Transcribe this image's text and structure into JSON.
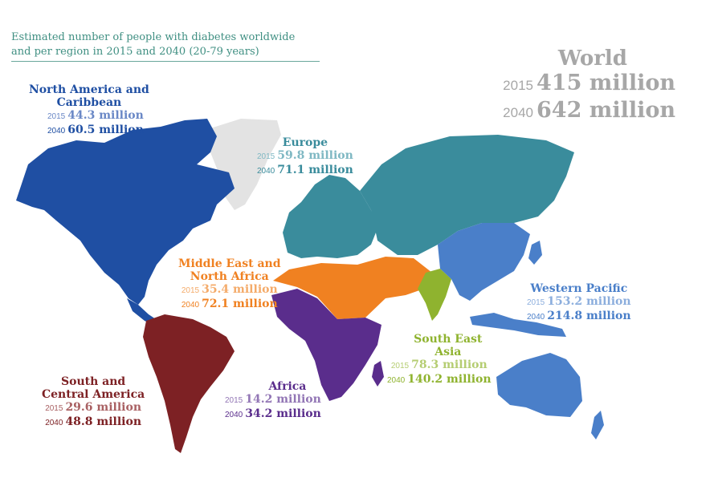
{
  "title_lines": [
    "Estimated number of people with diabetes worldwide",
    "and per region in 2015 and 2040 (20-79 years)"
  ],
  "world": {
    "name": "World",
    "y2015_label": "2015",
    "v2015": "415 million",
    "y2040_label": "2040",
    "v2040": "642 million",
    "color": "#a7a7a7"
  },
  "regions": {
    "north_america": {
      "name_lines": [
        "North America and",
        "Caribbean"
      ],
      "y2015_label": "2015",
      "v2015": "44.3 million",
      "y2040_label": "2040",
      "v2040": "60.5 million",
      "color": "#1f4fa3",
      "light": "#6a88c6"
    },
    "europe": {
      "name_lines": [
        "Europe"
      ],
      "y2015_label": "2015",
      "v2015": "59.8 million",
      "y2040_label": "2040",
      "v2040": "71.1 million",
      "color": "#3a8c9c",
      "light": "#7fb8c3"
    },
    "mena": {
      "name_lines": [
        "Middle East and",
        "North Africa"
      ],
      "y2015_label": "2015",
      "v2015": "35.4 million",
      "y2040_label": "2040",
      "v2040": "72.1 million",
      "color": "#f08121",
      "light": "#f4ab6a"
    },
    "western_pacific": {
      "name_lines": [
        "Western Pacific"
      ],
      "y2015_label": "2015",
      "v2015": "153.2 million",
      "y2040_label": "2040",
      "v2040": "214.8 million",
      "color": "#4a7fc9",
      "light": "#8caedd"
    },
    "south_east_asia": {
      "name_lines": [
        "South East",
        "Asia"
      ],
      "y2015_label": "2015",
      "v2015": "78.3 million",
      "y2040_label": "2040",
      "v2040": "140.2 million",
      "color": "#8fb32f",
      "light": "#b5cd72"
    },
    "africa": {
      "name_lines": [
        "Africa"
      ],
      "y2015_label": "2015",
      "v2015": "14.2 million",
      "y2040_label": "2040",
      "v2040": "34.2 million",
      "color": "#5a2d8c",
      "light": "#9276b5"
    },
    "south_central_america": {
      "name_lines": [
        "South and",
        "Central America"
      ],
      "y2015_label": "2015",
      "v2015": "29.6 million",
      "y2040_label": "2040",
      "v2040": "48.8 million",
      "color": "#7d2124",
      "light": "#a96163"
    }
  },
  "greenland_color": "#e3e3e3"
}
